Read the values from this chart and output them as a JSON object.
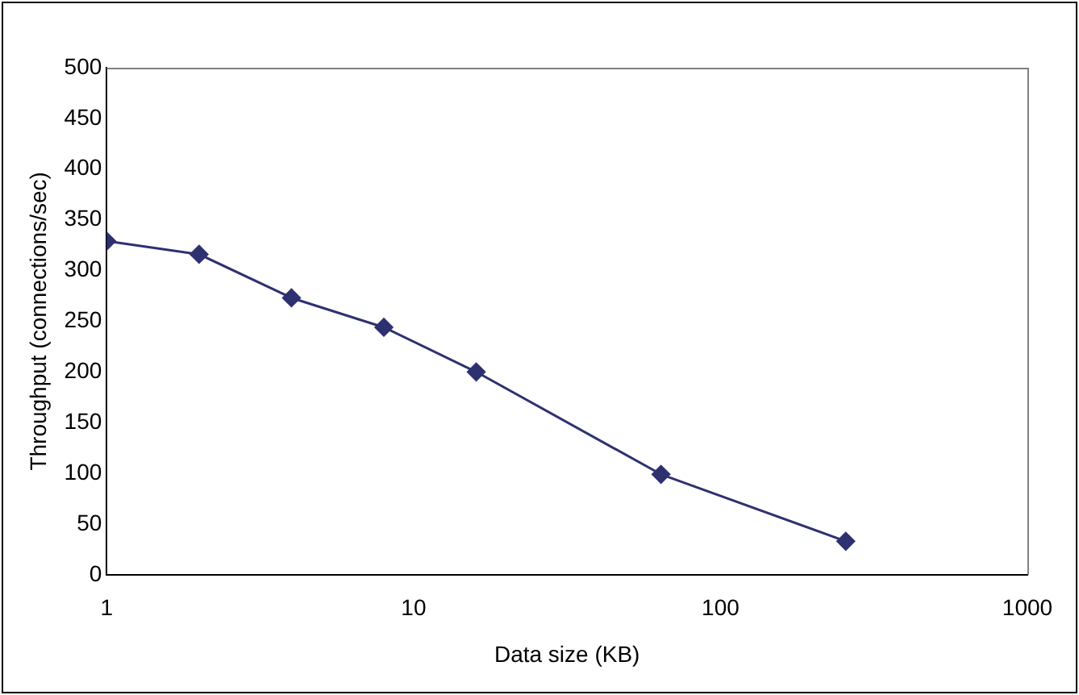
{
  "chart_data": {
    "type": "line",
    "xlabel": "Data size (KB)",
    "ylabel": "Throughput (connections/sec)",
    "x": [
      1,
      2,
      4,
      8,
      16,
      64,
      256
    ],
    "series": [
      {
        "color": "#2e3170",
        "values": [
          329,
          316,
          273,
          244,
          200,
          99,
          33
        ]
      }
    ],
    "log": "x",
    "xlim": [
      1,
      1000
    ],
    "xticks": [
      1,
      10,
      100,
      1000
    ],
    "ylim": [
      0,
      500
    ],
    "yticks": [
      0,
      50,
      100,
      150,
      200,
      250,
      300,
      350,
      400,
      450,
      500
    ],
    "grid": false,
    "legend": false,
    "marker": "diamond",
    "line_style": "solid"
  }
}
